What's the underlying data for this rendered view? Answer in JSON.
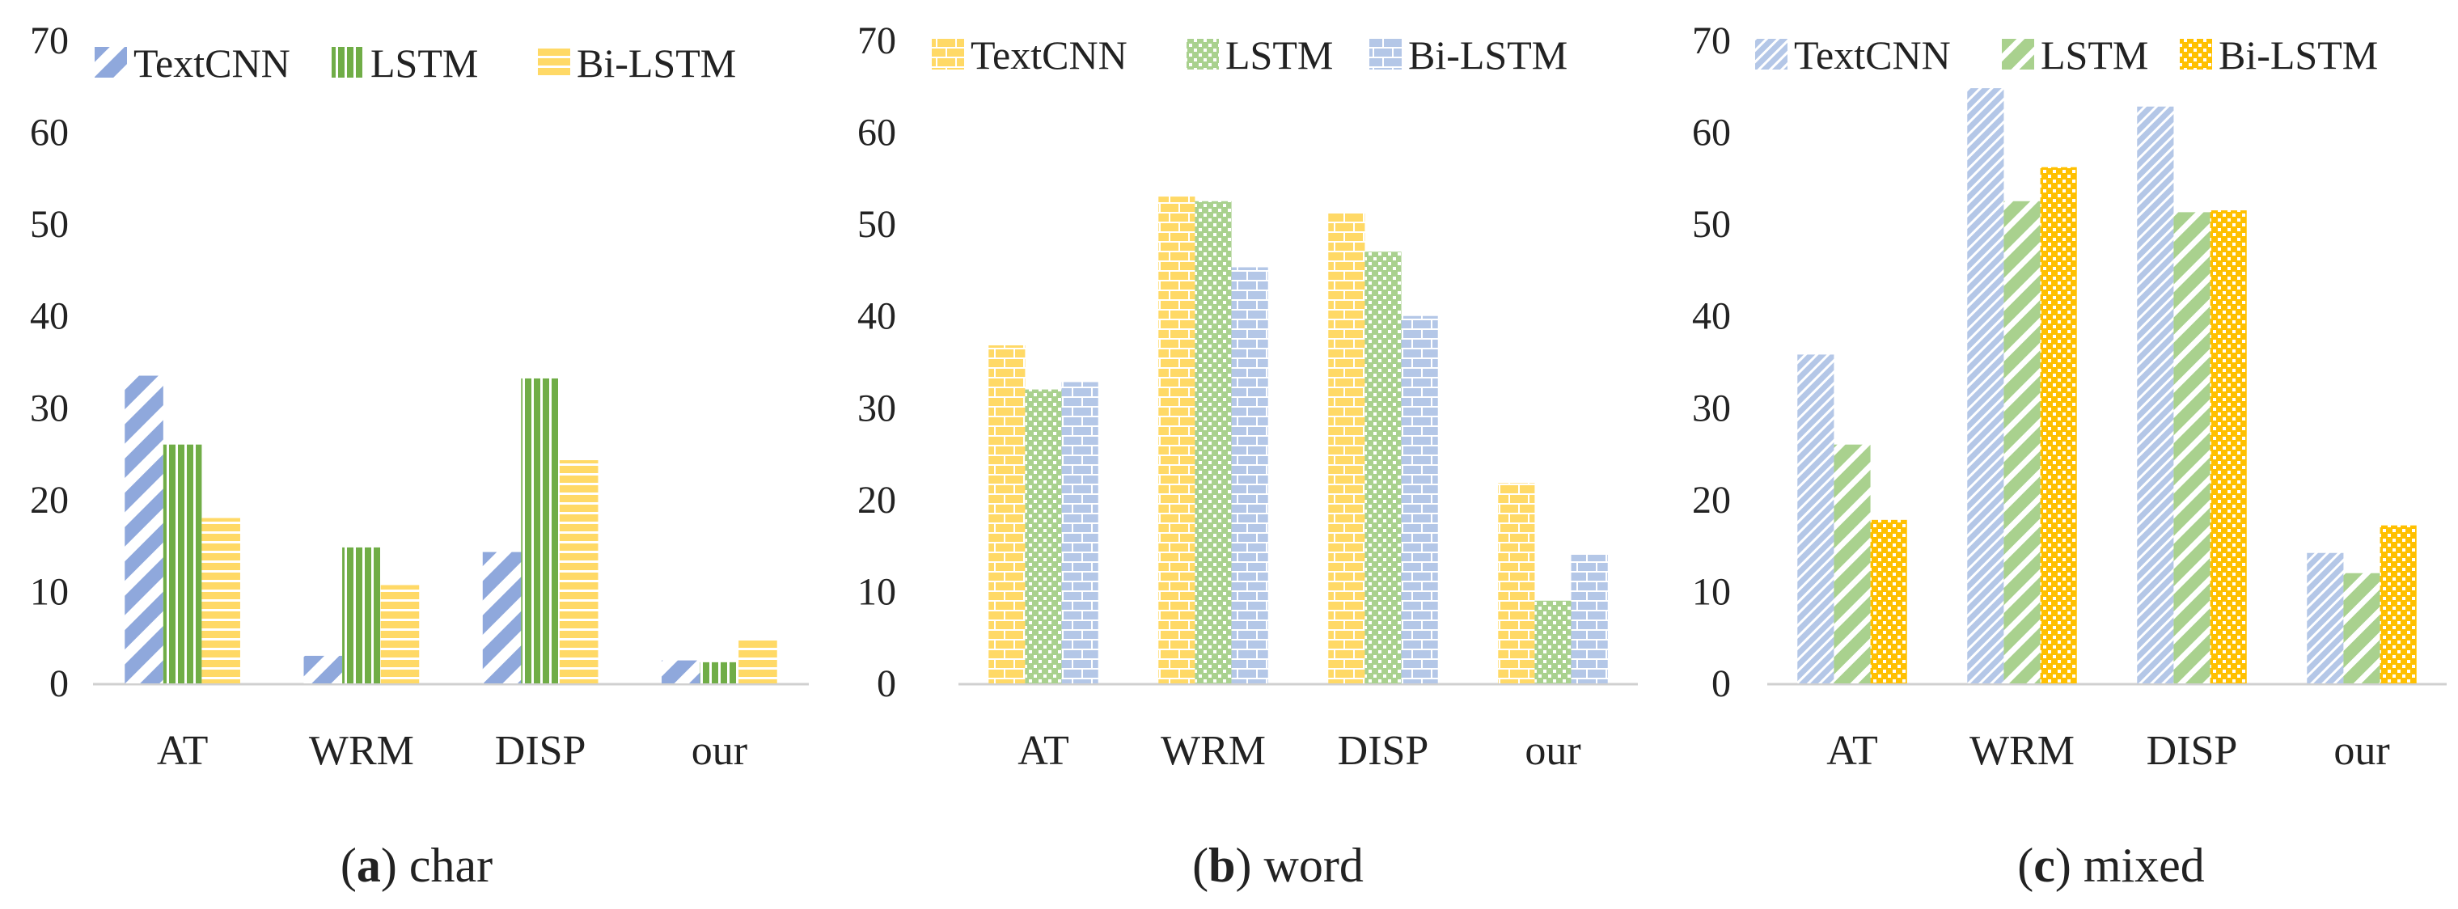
{
  "chart_data": [
    {
      "type": "bar",
      "caption_letter": "a",
      "caption_text": " char",
      "categories": [
        "AT",
        "WRM",
        "DISP",
        "our"
      ],
      "yticks": [
        "0",
        "10",
        "20",
        "30",
        "40",
        "50",
        "60",
        "70"
      ],
      "ylim": [
        0,
        70
      ],
      "grid": false,
      "legend_position": "top",
      "series": [
        {
          "name": "TextCNN",
          "values": [
            33.5,
            3,
            14.3,
            2.5
          ],
          "color": "#8FA8DC",
          "pattern": "diag"
        },
        {
          "name": "LSTM",
          "values": [
            26,
            14.8,
            33.2,
            2.3
          ],
          "color": "#70AD47",
          "pattern": "vert"
        },
        {
          "name": "Bi-LSTM",
          "values": [
            18,
            10.7,
            24.3,
            4.8
          ],
          "color": "#FFD966",
          "pattern": "horiz"
        }
      ]
    },
    {
      "type": "bar",
      "caption_letter": "b",
      "caption_text": " word",
      "categories": [
        "AT",
        "WRM",
        "DISP",
        "our"
      ],
      "yticks": [
        "0",
        "10",
        "20",
        "30",
        "40",
        "50",
        "60",
        "70"
      ],
      "ylim": [
        0,
        70
      ],
      "grid": false,
      "legend_position": "top",
      "series": [
        {
          "name": "TextCNN",
          "values": [
            36.8,
            53,
            51.3,
            21.8
          ],
          "color": "#FFD966",
          "pattern": "brick"
        },
        {
          "name": "LSTM",
          "values": [
            32,
            52.5,
            47,
            9
          ],
          "color": "#A9D18E",
          "pattern": "check"
        },
        {
          "name": "Bi-LSTM",
          "values": [
            32.8,
            45.3,
            40,
            14
          ],
          "color": "#B4C7E7",
          "pattern": "brick"
        }
      ]
    },
    {
      "type": "bar",
      "caption_letter": "c",
      "caption_text": " mixed",
      "categories": [
        "AT",
        "WRM",
        "DISP",
        "our"
      ],
      "yticks": [
        "0",
        "10",
        "20",
        "30",
        "40",
        "50",
        "60",
        "70"
      ],
      "ylim": [
        0,
        70
      ],
      "grid": false,
      "legend_position": "top",
      "series": [
        {
          "name": "TextCNN",
          "values": [
            35.8,
            64.8,
            62.8,
            14.2
          ],
          "color": "#B4C7E7",
          "pattern": "finediag"
        },
        {
          "name": "LSTM",
          "values": [
            26,
            52.5,
            51.3,
            12
          ],
          "color": "#A9D18E",
          "pattern": "widediag"
        },
        {
          "name": "Bi-LSTM",
          "values": [
            17.8,
            56.2,
            51.5,
            17.2
          ],
          "color": "#FFC000",
          "pattern": "check"
        }
      ]
    }
  ]
}
